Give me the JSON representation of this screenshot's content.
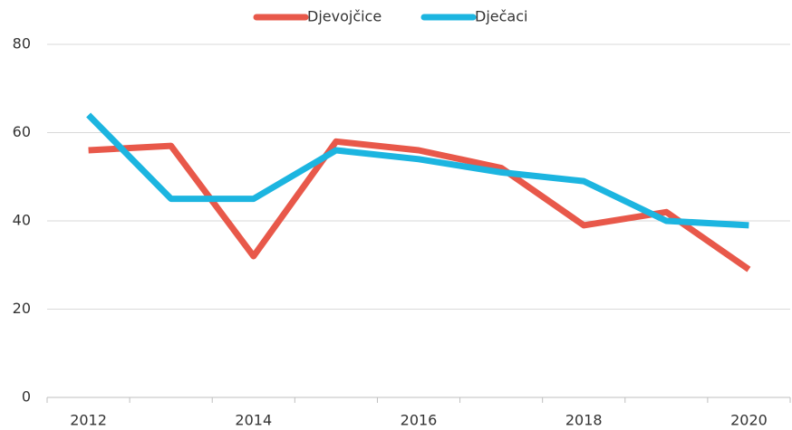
{
  "chart_data": {
    "type": "line",
    "categories": [
      "2012",
      null,
      "2014",
      null,
      "2016",
      null,
      "2018",
      null,
      "2020"
    ],
    "series": [
      {
        "name": "Djevojčice",
        "color": "#e8584a",
        "values": [
          56,
          57,
          32,
          58,
          56,
          52,
          39,
          42,
          29
        ]
      },
      {
        "name": "Dječaci",
        "color": "#1cb5e0",
        "values": [
          64,
          45,
          45,
          56,
          54,
          51,
          49,
          40,
          39
        ]
      }
    ],
    "ylim": [
      0,
      80
    ],
    "yticks": [
      0,
      20,
      40,
      60,
      80
    ],
    "grid": true,
    "legend": "top"
  }
}
